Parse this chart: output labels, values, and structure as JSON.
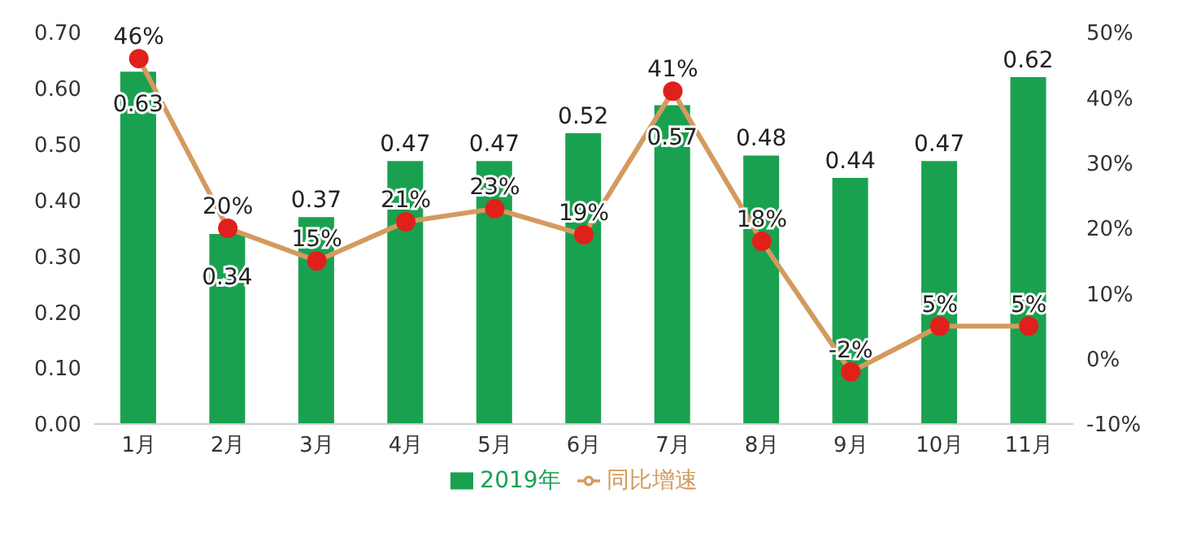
{
  "chart_data": {
    "type": "bar",
    "categories": [
      "1月",
      "2月",
      "3月",
      "4月",
      "5月",
      "6月",
      "7月",
      "8月",
      "9月",
      "10月",
      "11月"
    ],
    "series": [
      {
        "name": "2019年",
        "color": "#1aa150",
        "values": [
          0.63,
          0.34,
          0.37,
          0.47,
          0.47,
          0.52,
          0.57,
          0.48,
          0.44,
          0.47,
          0.62
        ],
        "value_labels": [
          "0.63",
          "0.34",
          "0.37",
          "0.47",
          "0.47",
          "0.52",
          "0.57",
          "0.48",
          "0.44",
          "0.47",
          "0.62"
        ]
      },
      {
        "name": "同比增速",
        "type": "line",
        "axis": "y2",
        "color": "#d49a5e",
        "colors": [
          "#e0201b",
          "#e0201b",
          "#e0201b",
          "#e0201b",
          "#e0201b",
          "#e0201b",
          "#e0201b",
          "#e0201b",
          "#e0201b",
          "#e0201b",
          "#e0201b"
        ],
        "values": [
          46,
          20,
          15,
          21,
          23,
          19,
          41,
          18,
          -2,
          5,
          5
        ],
        "value_labels": [
          "46%",
          "20%",
          "15%",
          "21%",
          "23%",
          "19%",
          "41%",
          "18%",
          "-2%",
          "5%",
          "5%"
        ]
      }
    ],
    "ylim": [
      0,
      0.7
    ],
    "yticks": [
      {
        "value": 0,
        "label": "0.00"
      },
      {
        "value": 0.1,
        "label": "0.10"
      },
      {
        "value": 0.2,
        "label": "0.20"
      },
      {
        "value": 0.3,
        "label": "0.30"
      },
      {
        "value": 0.4,
        "label": "0.40"
      },
      {
        "value": 0.5,
        "label": "0.50"
      },
      {
        "value": 0.6,
        "label": "0.60"
      },
      {
        "value": 0.7,
        "label": "0.70"
      }
    ],
    "y2lim": [
      -10,
      50
    ],
    "y2ticks": [
      {
        "value": -10,
        "label": "-10%"
      },
      {
        "value": 0,
        "label": "0%"
      },
      {
        "value": 10,
        "label": "10%"
      },
      {
        "value": 20,
        "label": "20%"
      },
      {
        "value": 30,
        "label": "30%"
      },
      {
        "value": 40,
        "label": "40%"
      },
      {
        "value": 50,
        "label": "50%"
      }
    ],
    "grid": false,
    "legend": "bottom",
    "marker": "circle",
    "line_style": "solid"
  }
}
